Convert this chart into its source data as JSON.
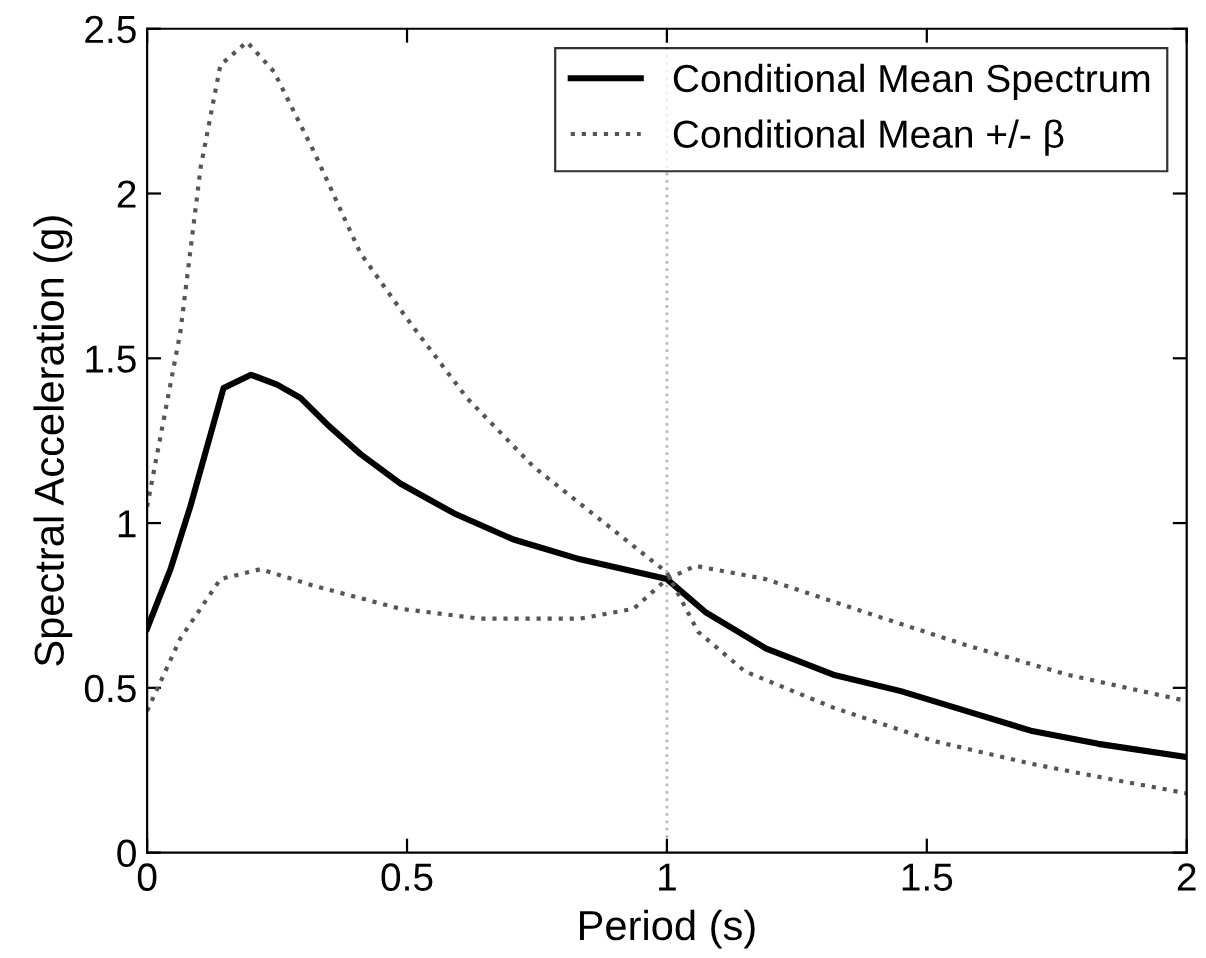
{
  "chart_data": {
    "type": "line",
    "xlabel": "Period (s)",
    "ylabel": "Spectral Acceleration (g)",
    "xlim": [
      0,
      2
    ],
    "ylim": [
      0,
      2.5
    ],
    "xticks": [
      0,
      0.5,
      1,
      1.5,
      2
    ],
    "yticks": [
      0,
      0.5,
      1,
      1.5,
      2,
      2.5
    ],
    "grid": false,
    "legend": "top right",
    "marker": "none",
    "ref_lines": [
      {
        "axis": "x",
        "value": 1,
        "color": "#bbbbbb",
        "line_style": "dotted"
      }
    ],
    "series": [
      {
        "name": "Conditional Mean Spectrum",
        "color": "#000000",
        "line_style": "solid",
        "x": [
          0,
          0.045,
          0.083,
          0.147,
          0.2,
          0.25,
          0.295,
          0.346,
          0.41,
          0.487,
          0.59,
          0.705,
          0.833,
          1.0,
          1.074,
          1.19,
          1.32,
          1.45,
          1.575,
          1.7,
          1.83,
          2.0
        ],
        "values": [
          0.68,
          0.86,
          1.05,
          1.41,
          1.45,
          1.42,
          1.38,
          1.3,
          1.21,
          1.12,
          1.03,
          0.95,
          0.89,
          0.83,
          0.73,
          0.62,
          0.54,
          0.49,
          0.43,
          0.37,
          0.33,
          0.29
        ]
      },
      {
        "name": "Conditional Mean +/- β",
        "color": "#555555",
        "line_style": "dotted",
        "x": [
          0,
          0.064,
          0.103,
          0.141,
          0.192,
          0.244,
          0.32,
          0.41,
          0.5,
          0.615,
          0.744,
          0.872,
          1.0,
          1.06,
          1.15,
          1.32,
          1.51,
          1.7,
          1.83,
          2.0
        ],
        "values": [
          1.05,
          1.58,
          2.08,
          2.39,
          2.46,
          2.37,
          2.13,
          1.82,
          1.62,
          1.38,
          1.17,
          1.01,
          0.85,
          0.67,
          0.55,
          0.44,
          0.34,
          0.27,
          0.23,
          0.18
        ]
      },
      {
        "color": "#555555",
        "line_style": "dotted",
        "x": [
          0,
          0.064,
          0.141,
          0.218,
          0.32,
          0.487,
          0.64,
          0.833,
          0.936,
          1.0,
          1.055,
          1.19,
          1.38,
          1.575,
          1.77,
          2.0
        ],
        "values": [
          0.43,
          0.65,
          0.83,
          0.86,
          0.81,
          0.74,
          0.71,
          0.71,
          0.74,
          0.83,
          0.87,
          0.83,
          0.73,
          0.63,
          0.54,
          0.46
        ]
      }
    ]
  }
}
